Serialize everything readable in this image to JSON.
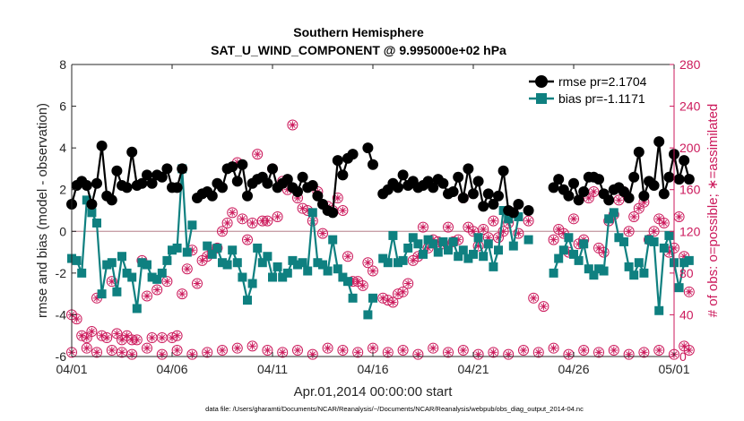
{
  "chart_data": {
    "type": "line",
    "title": "Southern Hemisphere",
    "subtitle": "SAT_U_WIND_COMPONENT @ 9.995000e+02 hPa",
    "xlabel": "Apr.01,2014 00:00:00 start",
    "ylabel_left": "rmse and bias (model - observation)",
    "ylabel_right": "# of obs: o=possible; ∗=assimilated",
    "footnote": "data file: /Users/gharamti/Documents/NCAR/Reanalysis/~/Documents/NCAR/Reanalysis/webpub/obs_diag_output_2014-04.nc",
    "xlim": [
      0,
      30
    ],
    "ylim_left": [
      -6,
      8
    ],
    "ylim_right": [
      0,
      280
    ],
    "x_ticks": [
      0,
      5,
      10,
      15,
      20,
      25,
      30
    ],
    "x_tick_labels": [
      "04/01",
      "04/06",
      "04/11",
      "04/16",
      "04/21",
      "04/26",
      "05/01"
    ],
    "y_ticks_left": [
      "-6",
      "-4",
      "-2",
      "0",
      "2",
      "4",
      "6",
      "8"
    ],
    "y_ticks_right": [
      "0",
      "40",
      "80",
      "120",
      "160",
      "200",
      "240",
      "280"
    ],
    "colors": {
      "rmse": "#000000",
      "bias": "#0f8080",
      "obs": "#cc1a5c",
      "zero_line": "#c8a0a8"
    },
    "legend": [
      {
        "name": "rmse pr=2.1704",
        "series": "rmse"
      },
      {
        "name": "bias pr=-1.1171",
        "series": "bias"
      }
    ],
    "rmse": [
      [
        0.0,
        1.3
      ],
      [
        0.25,
        2.2
      ],
      [
        0.5,
        2.4
      ],
      [
        0.75,
        2.2
      ],
      [
        1.0,
        1.3
      ],
      [
        1.25,
        2.3
      ],
      [
        1.5,
        4.1
      ],
      [
        1.75,
        1.7
      ],
      [
        2.0,
        1.5
      ],
      [
        2.25,
        2.9
      ],
      [
        2.5,
        2.2
      ],
      [
        2.75,
        2.1
      ],
      [
        3.0,
        3.8
      ],
      [
        3.25,
        2.2
      ],
      [
        3.5,
        2.3
      ],
      [
        3.75,
        2.7
      ],
      [
        4.0,
        2.3
      ],
      [
        4.25,
        2.7
      ],
      [
        4.5,
        2.6
      ],
      [
        4.75,
        3.0
      ],
      [
        5.0,
        2.1
      ],
      [
        5.25,
        2.1
      ],
      [
        5.5,
        3.0
      ],
      [
        6.25,
        1.6
      ],
      [
        6.5,
        1.8
      ],
      [
        6.75,
        1.9
      ],
      [
        7.0,
        1.7
      ],
      [
        7.25,
        2.3
      ],
      [
        7.5,
        2.1
      ],
      [
        7.75,
        3.0
      ],
      [
        8.0,
        3.1
      ],
      [
        8.25,
        2.4
      ],
      [
        8.5,
        3.2
      ],
      [
        8.75,
        1.7
      ],
      [
        9.0,
        2.3
      ],
      [
        9.25,
        2.5
      ],
      [
        9.5,
        2.6
      ],
      [
        9.75,
        2.3
      ],
      [
        10.0,
        3.0
      ],
      [
        10.25,
        2.1
      ],
      [
        10.5,
        2.3
      ],
      [
        10.75,
        2.5
      ],
      [
        11.0,
        2.1
      ],
      [
        11.25,
        1.9
      ],
      [
        11.5,
        2.6
      ],
      [
        11.75,
        2.1
      ],
      [
        12.0,
        2.2
      ],
      [
        12.25,
        1.7
      ],
      [
        12.5,
        1.3
      ],
      [
        12.75,
        1.0
      ],
      [
        13.0,
        0.9
      ],
      [
        13.25,
        3.4
      ],
      [
        13.5,
        2.7
      ],
      [
        13.75,
        3.5
      ],
      [
        14.0,
        3.7
      ],
      [
        14.75,
        4.0
      ],
      [
        15.0,
        3.2
      ],
      [
        15.5,
        1.8
      ],
      [
        15.75,
        2.0
      ],
      [
        16.0,
        2.3
      ],
      [
        16.25,
        2.1
      ],
      [
        16.5,
        2.7
      ],
      [
        16.75,
        2.2
      ],
      [
        17.0,
        2.4
      ],
      [
        17.25,
        2.1
      ],
      [
        17.5,
        2.2
      ],
      [
        17.75,
        2.4
      ],
      [
        18.0,
        2.1
      ],
      [
        18.25,
        2.5
      ],
      [
        18.5,
        2.3
      ],
      [
        18.75,
        1.8
      ],
      [
        19.0,
        1.9
      ],
      [
        19.25,
        2.6
      ],
      [
        19.5,
        1.6
      ],
      [
        19.75,
        3.0
      ],
      [
        20.0,
        1.8
      ],
      [
        20.25,
        2.4
      ],
      [
        20.5,
        1.2
      ],
      [
        20.75,
        1.8
      ],
      [
        21.0,
        1.3
      ],
      [
        21.25,
        1.7
      ],
      [
        21.5,
        2.9
      ],
      [
        21.75,
        1.0
      ],
      [
        22.0,
        0.9
      ],
      [
        22.25,
        1.3
      ],
      [
        22.75,
        1.0
      ],
      [
        24.0,
        2.1
      ],
      [
        24.25,
        2.5
      ],
      [
        24.5,
        2.0
      ],
      [
        24.75,
        1.7
      ],
      [
        25.0,
        2.3
      ],
      [
        25.25,
        1.5
      ],
      [
        25.5,
        1.9
      ],
      [
        25.75,
        2.6
      ],
      [
        26.0,
        2.6
      ],
      [
        26.25,
        2.5
      ],
      [
        26.5,
        1.8
      ],
      [
        26.75,
        1.5
      ],
      [
        27.0,
        2.0
      ],
      [
        27.25,
        2.1
      ],
      [
        27.5,
        1.9
      ],
      [
        27.75,
        1.6
      ],
      [
        28.0,
        2.6
      ],
      [
        28.25,
        3.8
      ],
      [
        28.5,
        1.7
      ],
      [
        28.75,
        2.4
      ],
      [
        29.0,
        2.2
      ],
      [
        29.25,
        4.3
      ],
      [
        29.5,
        1.8
      ],
      [
        29.75,
        2.6
      ],
      [
        30.0,
        3.7
      ],
      [
        30.25,
        2.5
      ],
      [
        30.5,
        3.4
      ],
      [
        30.75,
        2.5
      ]
    ],
    "bias": [
      [
        0.0,
        -1.3
      ],
      [
        0.25,
        -1.4
      ],
      [
        0.5,
        -2.0
      ],
      [
        0.75,
        1.5
      ],
      [
        1.0,
        0.9
      ],
      [
        1.25,
        0.4
      ],
      [
        1.5,
        -3.0
      ],
      [
        1.75,
        -1.6
      ],
      [
        2.0,
        -1.5
      ],
      [
        2.25,
        -2.9
      ],
      [
        2.5,
        -1.2
      ],
      [
        2.75,
        -2.0
      ],
      [
        3.0,
        -2.2
      ],
      [
        3.25,
        -3.7
      ],
      [
        3.5,
        -1.5
      ],
      [
        3.75,
        -1.6
      ],
      [
        4.0,
        -2.2
      ],
      [
        4.25,
        -2.3
      ],
      [
        4.5,
        -2.0
      ],
      [
        4.75,
        -1.4
      ],
      [
        5.0,
        -0.9
      ],
      [
        5.25,
        -0.8
      ],
      [
        5.5,
        3.0
      ],
      [
        5.75,
        -1.0
      ],
      [
        6.0,
        0.3
      ],
      [
        6.75,
        -0.7
      ],
      [
        7.0,
        -1.1
      ],
      [
        7.25,
        -0.8
      ],
      [
        7.5,
        -1.5
      ],
      [
        7.75,
        -1.6
      ],
      [
        8.0,
        -0.9
      ],
      [
        8.25,
        -1.5
      ],
      [
        8.5,
        -2.2
      ],
      [
        8.75,
        -3.3
      ],
      [
        9.0,
        -2.5
      ],
      [
        9.25,
        -0.8
      ],
      [
        9.5,
        -1.5
      ],
      [
        9.75,
        -1.2
      ],
      [
        10.0,
        -2.2
      ],
      [
        10.25,
        -1.7
      ],
      [
        10.5,
        -2.2
      ],
      [
        10.75,
        -2.0
      ],
      [
        11.0,
        -1.4
      ],
      [
        11.25,
        -1.6
      ],
      [
        11.5,
        -1.5
      ],
      [
        11.75,
        -1.9
      ],
      [
        12.0,
        0.9
      ],
      [
        12.25,
        -1.5
      ],
      [
        12.5,
        -1.6
      ],
      [
        12.75,
        -1.9
      ],
      [
        13.0,
        -0.4
      ],
      [
        13.25,
        -1.8
      ],
      [
        13.5,
        -2.2
      ],
      [
        13.75,
        -2.4
      ],
      [
        14.0,
        -3.2
      ],
      [
        14.75,
        -4.0
      ],
      [
        15.0,
        -3.2
      ],
      [
        15.5,
        -1.3
      ],
      [
        15.75,
        -1.5
      ],
      [
        16.0,
        -0.2
      ],
      [
        16.25,
        -1.5
      ],
      [
        16.5,
        -1.4
      ],
      [
        16.75,
        -0.8
      ],
      [
        17.0,
        -0.3
      ],
      [
        17.25,
        -0.6
      ],
      [
        17.5,
        -1.1
      ],
      [
        17.75,
        -0.4
      ],
      [
        18.0,
        -0.6
      ],
      [
        18.25,
        -1.0
      ],
      [
        18.5,
        -0.5
      ],
      [
        18.75,
        -0.9
      ],
      [
        19.0,
        -0.5
      ],
      [
        19.25,
        -1.2
      ],
      [
        19.5,
        -0.9
      ],
      [
        19.75,
        -1.3
      ],
      [
        20.0,
        -1.1
      ],
      [
        20.25,
        -0.3
      ],
      [
        20.5,
        -1.2
      ],
      [
        20.75,
        -0.6
      ],
      [
        21.0,
        -1.7
      ],
      [
        21.25,
        -0.9
      ],
      [
        21.5,
        1.0
      ],
      [
        21.75,
        0.6
      ],
      [
        22.0,
        -0.7
      ],
      [
        22.25,
        0.7
      ],
      [
        22.75,
        -0.4
      ],
      [
        24.0,
        -2.0
      ],
      [
        24.25,
        -1.3
      ],
      [
        24.5,
        -0.9
      ],
      [
        24.75,
        -0.3
      ],
      [
        25.0,
        -1.1
      ],
      [
        25.25,
        -1.4
      ],
      [
        25.5,
        -0.6
      ],
      [
        25.75,
        -1.8
      ],
      [
        26.0,
        -2.1
      ],
      [
        26.25,
        -1.8
      ],
      [
        26.5,
        -1.9
      ],
      [
        26.75,
        0.6
      ],
      [
        27.0,
        0.9
      ],
      [
        27.25,
        -0.3
      ],
      [
        27.5,
        -0.5
      ],
      [
        27.75,
        -1.7
      ],
      [
        28.0,
        -2.1
      ],
      [
        28.25,
        -1.5
      ],
      [
        28.5,
        -2.0
      ],
      [
        28.75,
        -0.4
      ],
      [
        29.0,
        -0.5
      ],
      [
        29.25,
        -3.8
      ],
      [
        29.5,
        -0.8
      ],
      [
        29.75,
        -0.2
      ],
      [
        30.0,
        -1.5
      ],
      [
        30.25,
        -2.7
      ],
      [
        30.5,
        -1.5
      ],
      [
        30.75,
        -1.4
      ]
    ],
    "obs_possible_high": [
      [
        0.0,
        40
      ],
      [
        0.25,
        36
      ],
      [
        0.5,
        20
      ],
      [
        0.75,
        18
      ],
      [
        1.0,
        24
      ],
      [
        1.25,
        56
      ],
      [
        1.5,
        20
      ],
      [
        1.75,
        18
      ],
      [
        2.0,
        72
      ],
      [
        2.25,
        22
      ],
      [
        2.5,
        16
      ],
      [
        2.75,
        20
      ],
      [
        3.0,
        16
      ],
      [
        3.25,
        16
      ],
      [
        3.5,
        92
      ],
      [
        3.75,
        58
      ],
      [
        4.0,
        18
      ],
      [
        4.25,
        64
      ],
      [
        4.5,
        18
      ],
      [
        4.75,
        72
      ],
      [
        5.0,
        18
      ],
      [
        5.25,
        20
      ],
      [
        5.5,
        60
      ],
      [
        5.75,
        84
      ],
      [
        6.0,
        102
      ],
      [
        6.25,
        70
      ],
      [
        6.5,
        92
      ],
      [
        6.75,
        96
      ],
      [
        7.0,
        102
      ],
      [
        7.25,
        104
      ],
      [
        7.5,
        120
      ],
      [
        7.75,
        128
      ],
      [
        8.0,
        138
      ],
      [
        8.25,
        186
      ],
      [
        8.5,
        132
      ],
      [
        8.75,
        112
      ],
      [
        9.0,
        128
      ],
      [
        9.25,
        194
      ],
      [
        9.5,
        130
      ],
      [
        9.75,
        130
      ],
      [
        10.0,
        180
      ],
      [
        10.25,
        134
      ],
      [
        10.5,
        168
      ],
      [
        10.75,
        160
      ],
      [
        11.0,
        222
      ],
      [
        11.25,
        152
      ],
      [
        11.5,
        142
      ],
      [
        11.75,
        140
      ],
      [
        12.0,
        130
      ],
      [
        12.25,
        158
      ],
      [
        12.5,
        118
      ],
      [
        12.75,
        144
      ],
      [
        13.0,
        140
      ],
      [
        13.25,
        152
      ],
      [
        13.5,
        140
      ],
      [
        13.75,
        96
      ],
      [
        14.0,
        72
      ],
      [
        14.25,
        72
      ],
      [
        14.5,
        68
      ],
      [
        14.75,
        90
      ],
      [
        15.0,
        82
      ],
      [
        15.5,
        56
      ],
      [
        15.75,
        54
      ],
      [
        16.0,
        52
      ],
      [
        16.25,
        60
      ],
      [
        16.5,
        62
      ],
      [
        16.75,
        70
      ],
      [
        17.0,
        92
      ],
      [
        17.25,
        96
      ],
      [
        17.5,
        124
      ],
      [
        17.75,
        104
      ],
      [
        18.0,
        112
      ],
      [
        18.25,
        110
      ],
      [
        18.5,
        108
      ],
      [
        18.75,
        124
      ],
      [
        19.0,
        110
      ],
      [
        19.25,
        112
      ],
      [
        19.5,
        152
      ],
      [
        19.75,
        124
      ],
      [
        20.0,
        120
      ],
      [
        20.25,
        106
      ],
      [
        20.5,
        122
      ],
      [
        20.75,
        114
      ],
      [
        21.0,
        130
      ],
      [
        21.25,
        114
      ],
      [
        21.5,
        120
      ],
      [
        21.75,
        128
      ],
      [
        22.0,
        138
      ],
      [
        22.25,
        118
      ],
      [
        22.75,
        130
      ],
      [
        23.0,
        56
      ],
      [
        23.5,
        48
      ],
      [
        24.0,
        112
      ],
      [
        24.25,
        122
      ],
      [
        24.5,
        118
      ],
      [
        24.75,
        100
      ],
      [
        25.0,
        132
      ],
      [
        25.25,
        108
      ],
      [
        25.5,
        112
      ],
      [
        25.75,
        152
      ],
      [
        26.0,
        158
      ],
      [
        26.25,
        104
      ],
      [
        26.5,
        100
      ],
      [
        26.75,
        130
      ],
      [
        27.0,
        136
      ],
      [
        27.25,
        150
      ],
      [
        27.5,
        158
      ],
      [
        27.75,
        120
      ],
      [
        28.0,
        134
      ],
      [
        28.25,
        142
      ],
      [
        28.5,
        148
      ],
      [
        28.75,
        112
      ],
      [
        29.0,
        120
      ],
      [
        29.25,
        132
      ],
      [
        29.5,
        128
      ],
      [
        29.75,
        100
      ],
      [
        30.0,
        104
      ],
      [
        30.25,
        134
      ],
      [
        30.5,
        96
      ],
      [
        30.75,
        62
      ]
    ],
    "obs_possible_low": [
      [
        0.0,
        4
      ],
      [
        0.75,
        8
      ],
      [
        1.25,
        4
      ],
      [
        2.0,
        6
      ],
      [
        2.5,
        4
      ],
      [
        3.0,
        2
      ],
      [
        3.75,
        8
      ],
      [
        4.5,
        2
      ],
      [
        5.25,
        6
      ],
      [
        6.0,
        2
      ],
      [
        6.75,
        4
      ],
      [
        7.5,
        6
      ],
      [
        8.25,
        8
      ],
      [
        9.0,
        10
      ],
      [
        9.75,
        6
      ],
      [
        10.5,
        4
      ],
      [
        11.25,
        6
      ],
      [
        12.0,
        2
      ],
      [
        12.75,
        8
      ],
      [
        13.5,
        6
      ],
      [
        14.25,
        4
      ],
      [
        15.0,
        8
      ],
      [
        15.75,
        4
      ],
      [
        16.5,
        6
      ],
      [
        17.25,
        2
      ],
      [
        18.0,
        8
      ],
      [
        18.75,
        4
      ],
      [
        19.5,
        6
      ],
      [
        20.25,
        2
      ],
      [
        21.0,
        4
      ],
      [
        21.75,
        2
      ],
      [
        22.5,
        6
      ],
      [
        23.25,
        4
      ],
      [
        24.0,
        8
      ],
      [
        24.75,
        2
      ],
      [
        25.5,
        6
      ],
      [
        26.25,
        4
      ],
      [
        27.0,
        6
      ],
      [
        27.75,
        2
      ],
      [
        28.5,
        4
      ],
      [
        29.25,
        6
      ],
      [
        30.0,
        2
      ],
      [
        30.5,
        10
      ],
      [
        30.75,
        6
      ]
    ]
  }
}
